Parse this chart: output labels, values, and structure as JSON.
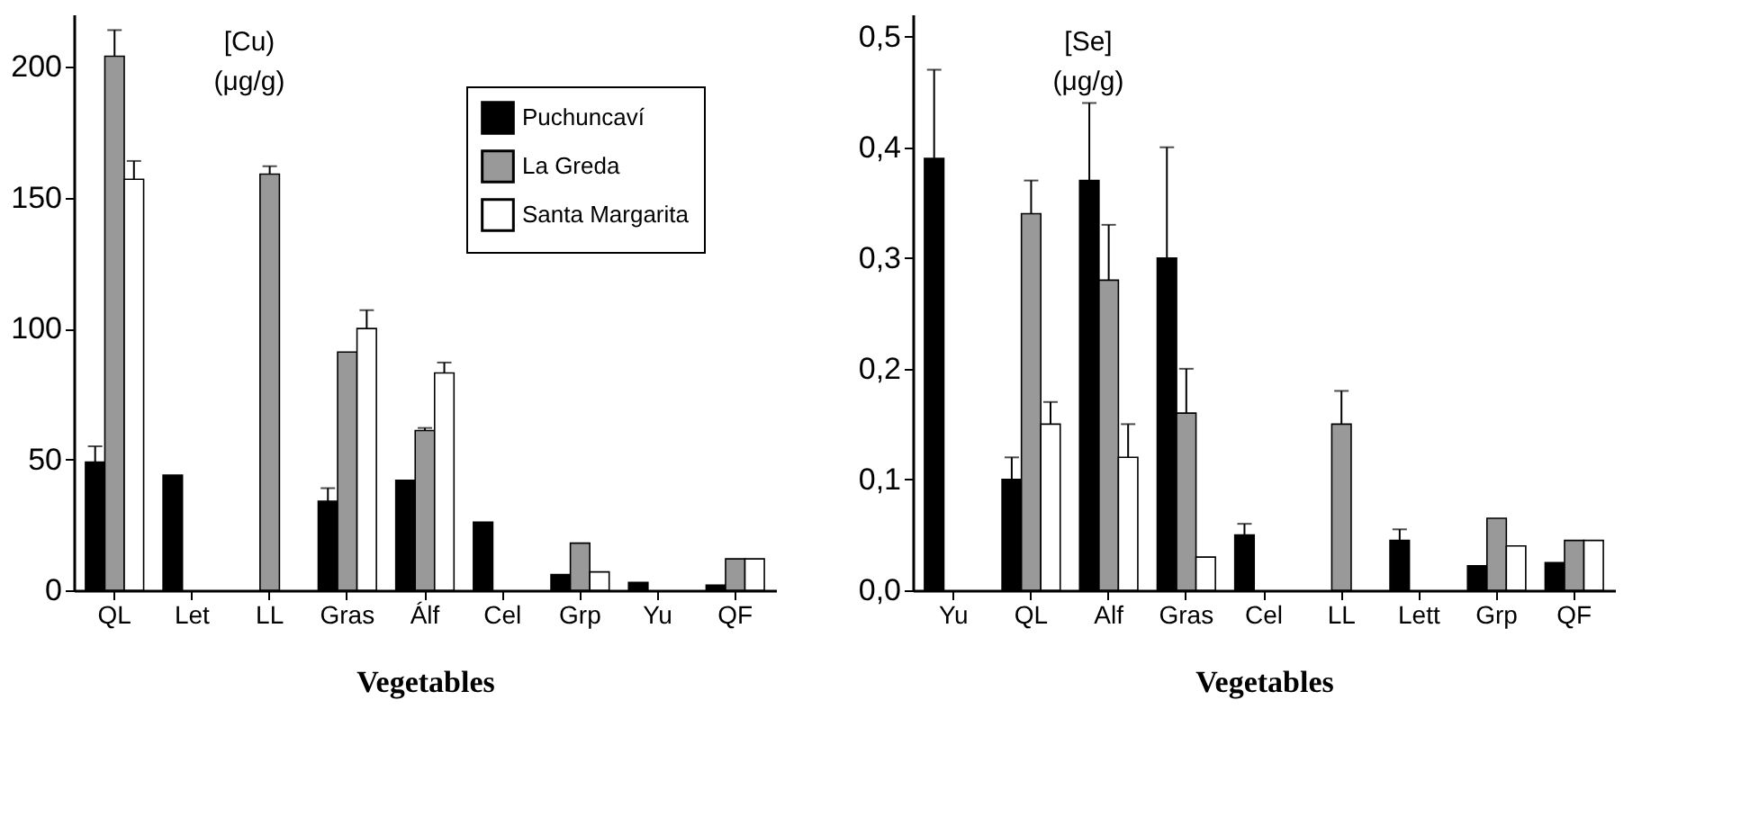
{
  "chart_data": [
    {
      "type": "bar",
      "xlabel": "Vegetables",
      "annotations": [
        "[Cu)\n(μg/g)"
      ],
      "categories": [
        "QL",
        "Let",
        "LL",
        "Gras",
        "Álf",
        "Cel",
        "Grp",
        "Yu",
        "QF"
      ],
      "series": [
        {
          "name": "Puchuncaví",
          "color": "#000000",
          "values": [
            49,
            44,
            null,
            34,
            42,
            26,
            6,
            3,
            2
          ],
          "errors": [
            [
              49,
              55
            ],
            null,
            null,
            [
              34,
              39
            ],
            null,
            null,
            null,
            null,
            null
          ]
        },
        {
          "name": "La Greda",
          "color": "#999999",
          "values": [
            204,
            null,
            159,
            91,
            61,
            null,
            18,
            null,
            12
          ],
          "errors": [
            [
              204,
              214
            ],
            null,
            [
              159,
              162
            ],
            null,
            [
              61,
              62
            ],
            null,
            null,
            null,
            null
          ]
        },
        {
          "name": "Santa Margarita",
          "color": "#ffffff",
          "values": [
            157,
            null,
            null,
            100,
            83,
            null,
            7,
            null,
            12
          ],
          "errors": [
            [
              157,
              164
            ],
            null,
            null,
            [
              100,
              107
            ],
            [
              83,
              87
            ],
            null,
            null,
            null,
            null
          ]
        }
      ],
      "ylim": [
        0,
        220
      ],
      "yticks": [
        0,
        50,
        100,
        150,
        200
      ],
      "grid": false,
      "legend": "top right"
    },
    {
      "type": "bar",
      "xlabel": "Vegetables",
      "annotations": [
        "[Se]\n(μg/g)"
      ],
      "categories": [
        "Yu",
        "QL",
        "Alf",
        "Gras",
        "Cel",
        "LL",
        "Lett",
        "Grp",
        "QF"
      ],
      "series": [
        {
          "color": "#000000",
          "values": [
            0.39,
            0.1,
            0.37,
            0.3,
            0.05,
            null,
            0.045,
            0.022,
            0.025
          ],
          "errors": [
            [
              0.39,
              0.47
            ],
            [
              0.1,
              0.12
            ],
            [
              0.37,
              0.44
            ],
            [
              0.3,
              0.4
            ],
            [
              0.05,
              0.06
            ],
            null,
            [
              0.045,
              0.055
            ],
            null,
            null
          ]
        },
        {
          "color": "#999999",
          "values": [
            null,
            0.34,
            0.28,
            0.16,
            null,
            0.15,
            null,
            0.065,
            0.045
          ],
          "errors": [
            null,
            [
              0.34,
              0.37
            ],
            [
              0.28,
              0.33
            ],
            [
              0.16,
              0.2
            ],
            null,
            [
              0.15,
              0.18
            ],
            null,
            null,
            null
          ]
        },
        {
          "color": "#ffffff",
          "values": [
            null,
            0.15,
            0.12,
            0.03,
            null,
            null,
            null,
            0.04,
            0.045
          ],
          "errors": [
            null,
            [
              0.15,
              0.17
            ],
            [
              0.12,
              0.15
            ],
            null,
            null,
            null,
            null,
            null,
            null
          ]
        }
      ],
      "ylim": [
        0,
        0.52
      ],
      "yticks": [
        {
          "value": 0,
          "label": "0,0"
        },
        {
          "value": 0.1,
          "label": "0,1"
        },
        {
          "value": 0.2,
          "label": "0,2"
        },
        {
          "value": 0.3,
          "label": "0,3"
        },
        {
          "value": 0.4,
          "label": "0,4"
        },
        {
          "value": 0.5,
          "label": "0,5"
        }
      ],
      "grid": false,
      "legend": false
    }
  ]
}
